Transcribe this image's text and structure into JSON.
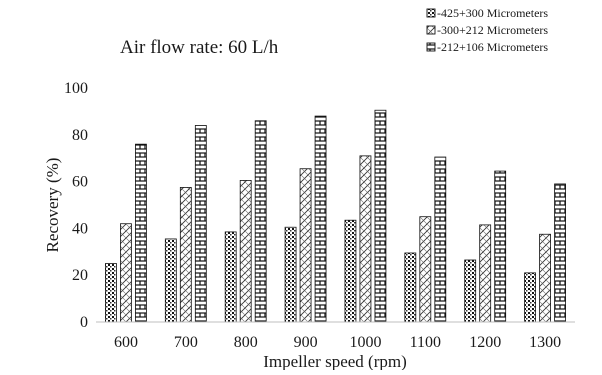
{
  "chart_data": {
    "type": "bar",
    "title": "",
    "annotation": "Air flow rate: 60 L/h",
    "xlabel": "Impeller speed (rpm)",
    "ylabel": "Recovery (%)",
    "ylim": [
      0,
      100
    ],
    "yticks": [
      0,
      20,
      40,
      60,
      80,
      100
    ],
    "grid": false,
    "legend_position": "top-right",
    "categories": [
      "600",
      "700",
      "800",
      "900",
      "1000",
      "1100",
      "1200",
      "1300"
    ],
    "series": [
      {
        "name": "-425+300 Micrometers",
        "pattern": "dots",
        "values": [
          25,
          35.5,
          38.5,
          40.5,
          43.5,
          29.5,
          26.5,
          21
        ]
      },
      {
        "name": "-300+212 Micrometers",
        "pattern": "diagonal-cross",
        "values": [
          42,
          57.5,
          60.5,
          65.5,
          71,
          45,
          41.5,
          37.5
        ]
      },
      {
        "name": "-212+106 Micrometers",
        "pattern": "bricks",
        "values": [
          76,
          84,
          86,
          88,
          90.5,
          70.5,
          64.5,
          59
        ]
      }
    ]
  }
}
